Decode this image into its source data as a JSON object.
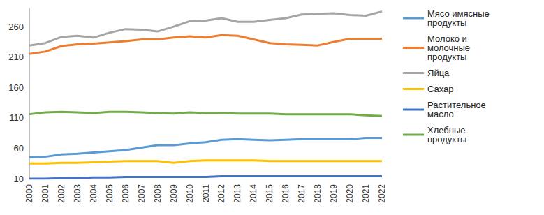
{
  "chart_data": {
    "type": "line",
    "categories": [
      "2000",
      "2001",
      "2002",
      "2003",
      "2004",
      "2005",
      "2006",
      "2007",
      "2008",
      "2009",
      "2010",
      "2011",
      "2012",
      "2013",
      "2014",
      "2015",
      "2016",
      "2017",
      "2018",
      "2019",
      "2020",
      "2021",
      "2022"
    ],
    "series": [
      {
        "name": "Мясо имясные продукты",
        "color": "#5B9BD5",
        "values": [
          45,
          46,
          50,
          51,
          53,
          55,
          57,
          61,
          65,
          65,
          68,
          70,
          74,
          75,
          74,
          73,
          74,
          75,
          75,
          75,
          75,
          77,
          77
        ]
      },
      {
        "name": "Молоко и молочные продукты",
        "color": "#ED7D31",
        "values": [
          215,
          219,
          228,
          231,
          232,
          234,
          236,
          239,
          239,
          242,
          244,
          242,
          246,
          245,
          239,
          233,
          231,
          230,
          229,
          235,
          240,
          240,
          240
        ]
      },
      {
        "name": "Яйца",
        "color": "#A5A5A5",
        "values": [
          229,
          233,
          243,
          245,
          242,
          250,
          256,
          255,
          252,
          260,
          269,
          270,
          274,
          268,
          268,
          271,
          274,
          280,
          281,
          282,
          279,
          278,
          285
        ]
      },
      {
        "name": "Сахар",
        "color": "#FFC000",
        "values": [
          35,
          35,
          36,
          36,
          37,
          38,
          39,
          39,
          39,
          36,
          39,
          40,
          40,
          40,
          40,
          39,
          39,
          39,
          39,
          39,
          39,
          39,
          39
        ]
      },
      {
        "name": "Растительное масло",
        "color": "#4472C4",
        "values": [
          10,
          10,
          11,
          11,
          12,
          12,
          13,
          13,
          13,
          13,
          13,
          13,
          14,
          14,
          14,
          14,
          14,
          14,
          14,
          14,
          14,
          14,
          14
        ]
      },
      {
        "name": "Хлебные продукты",
        "color": "#70AD47",
        "values": [
          116,
          119,
          120,
          119,
          118,
          120,
          120,
          119,
          118,
          117,
          119,
          118,
          118,
          117,
          117,
          117,
          116,
          116,
          116,
          116,
          116,
          114,
          113
        ]
      }
    ],
    "ylim": [
      10,
      290
    ],
    "yticks": [
      10,
      60,
      110,
      160,
      210,
      260
    ],
    "grid": false,
    "legend": "right"
  }
}
